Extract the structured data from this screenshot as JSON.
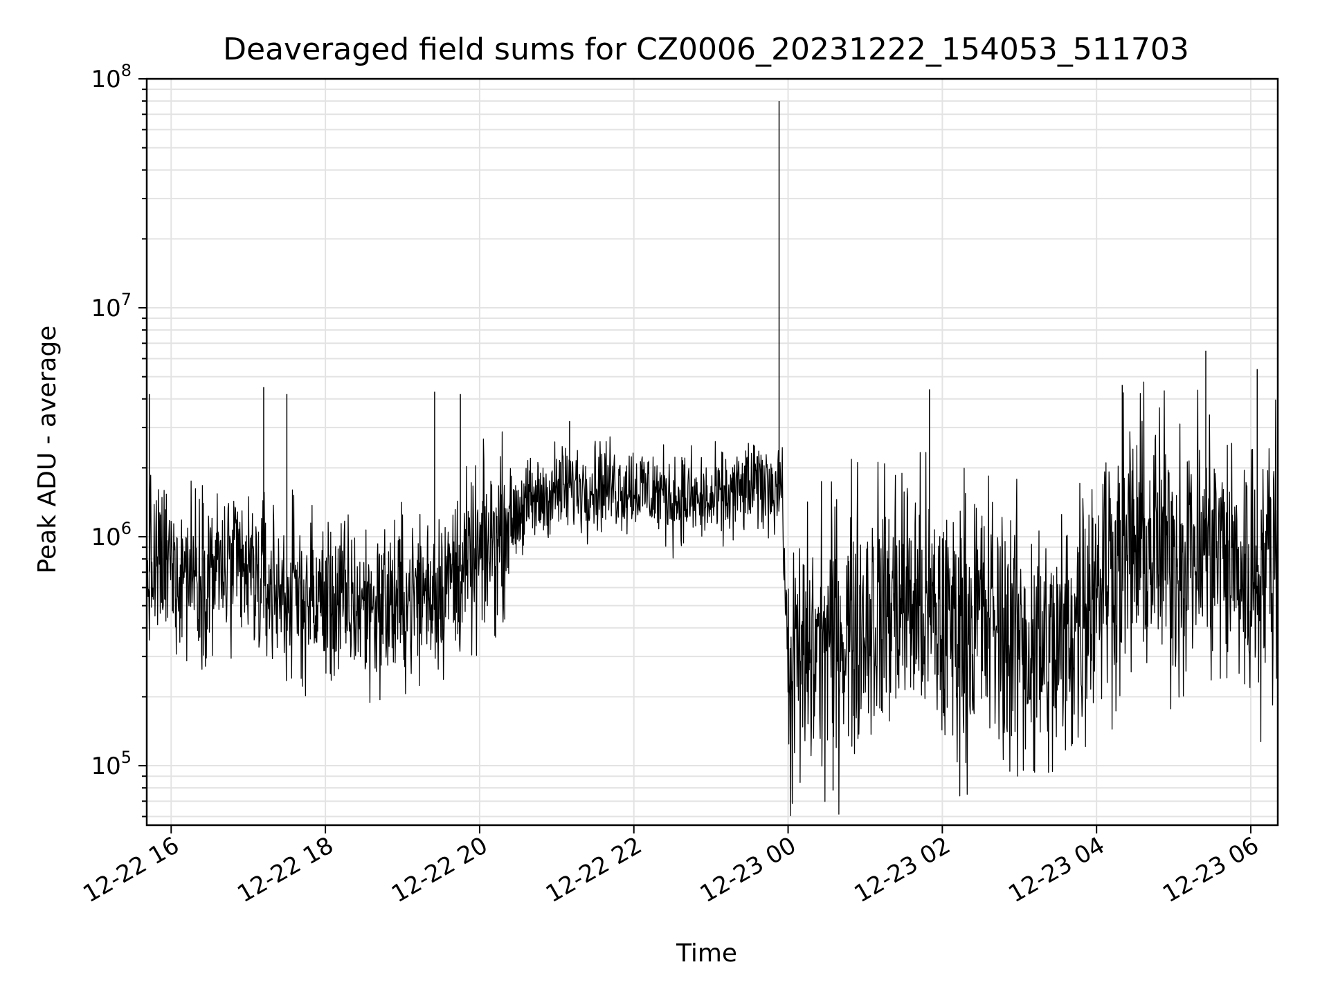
{
  "chart_data": {
    "type": "line",
    "title": "Deaveraged field sums for CZ0006_20231222_154053_511703",
    "xlabel": "Time",
    "ylabel": "Peak ADU - average",
    "yscale": "log",
    "ylim": [
      55000,
      100000000
    ],
    "xlim": [
      "2023-12-22 15:41",
      "2023-12-23 06:21"
    ],
    "grid": "major and minor, light gray",
    "line_color": "#000000",
    "x_ticks": [
      {
        "t": "2023-12-22 16:00",
        "label": "12-22 16"
      },
      {
        "t": "2023-12-22 18:00",
        "label": "12-22 18"
      },
      {
        "t": "2023-12-22 20:00",
        "label": "12-22 20"
      },
      {
        "t": "2023-12-22 22:00",
        "label": "12-22 22"
      },
      {
        "t": "2023-12-23 00:00",
        "label": "12-23 00"
      },
      {
        "t": "2023-12-23 02:00",
        "label": "12-23 02"
      },
      {
        "t": "2023-12-23 04:00",
        "label": "12-23 04"
      },
      {
        "t": "2023-12-23 06:00",
        "label": "12-23 06"
      }
    ],
    "y_ticks": [
      {
        "value": 100000,
        "base": "10",
        "exp": "5"
      },
      {
        "value": 1000000,
        "base": "10",
        "exp": "6"
      },
      {
        "value": 10000000,
        "base": "10",
        "exp": "7"
      },
      {
        "value": 100000000,
        "base": "10",
        "exp": "8"
      }
    ],
    "series": [
      {
        "points": [
          [
            "2023-12-22 15:41",
            700000
          ],
          [
            "2023-12-22 16:00",
            750000
          ],
          [
            "2023-12-22 16:30",
            720000
          ],
          [
            "2023-12-22 17:00",
            680000
          ],
          [
            "2023-12-22 17:30",
            560000
          ],
          [
            "2023-12-22 18:00",
            520000
          ],
          [
            "2023-12-22 18:30",
            500000
          ],
          [
            "2023-12-22 19:00",
            520000
          ],
          [
            "2023-12-22 19:30",
            620000
          ],
          [
            "2023-12-22 20:00",
            800000
          ],
          [
            "2023-12-22 20:30",
            1300000
          ],
          [
            "2023-12-22 21:00",
            1600000
          ],
          [
            "2023-12-22 21:30",
            1700000
          ],
          [
            "2023-12-22 22:00",
            1650000
          ],
          [
            "2023-12-22 22:30",
            1500000
          ],
          [
            "2023-12-22 23:00",
            1400000
          ],
          [
            "2023-12-22 23:30",
            1650000
          ],
          [
            "2023-12-22 23:55",
            1700000
          ],
          [
            "2023-12-23 00:00",
            250000
          ],
          [
            "2023-12-23 00:30",
            350000
          ],
          [
            "2023-12-23 01:00",
            450000
          ],
          [
            "2023-12-23 01:30",
            550000
          ],
          [
            "2023-12-23 02:00",
            400000
          ],
          [
            "2023-12-23 02:30",
            450000
          ],
          [
            "2023-12-23 03:00",
            350000
          ],
          [
            "2023-12-23 03:30",
            300000
          ],
          [
            "2023-12-23 04:00",
            700000
          ],
          [
            "2023-12-23 04:30",
            900000
          ],
          [
            "2023-12-23 05:00",
            850000
          ],
          [
            "2023-12-23 05:30",
            900000
          ],
          [
            "2023-12-23 06:00",
            650000
          ],
          [
            "2023-12-23 06:21",
            900000
          ]
        ],
        "spikes": [
          [
            "2023-12-22 15:43",
            4200000
          ],
          [
            "2023-12-22 17:12",
            4500000
          ],
          [
            "2023-12-22 17:30",
            4200000
          ],
          [
            "2023-12-22 19:25",
            4300000
          ],
          [
            "2023-12-22 19:45",
            4200000
          ],
          [
            "2023-12-22 21:10",
            3200000
          ],
          [
            "2023-12-22 23:53",
            80000000
          ],
          [
            "2023-12-23 00:35",
            78000
          ],
          [
            "2023-12-23 01:50",
            4400000
          ],
          [
            "2023-12-23 04:20",
            4600000
          ],
          [
            "2023-12-23 05:25",
            6500000
          ],
          [
            "2023-12-23 06:05",
            5400000
          ]
        ]
      }
    ]
  }
}
